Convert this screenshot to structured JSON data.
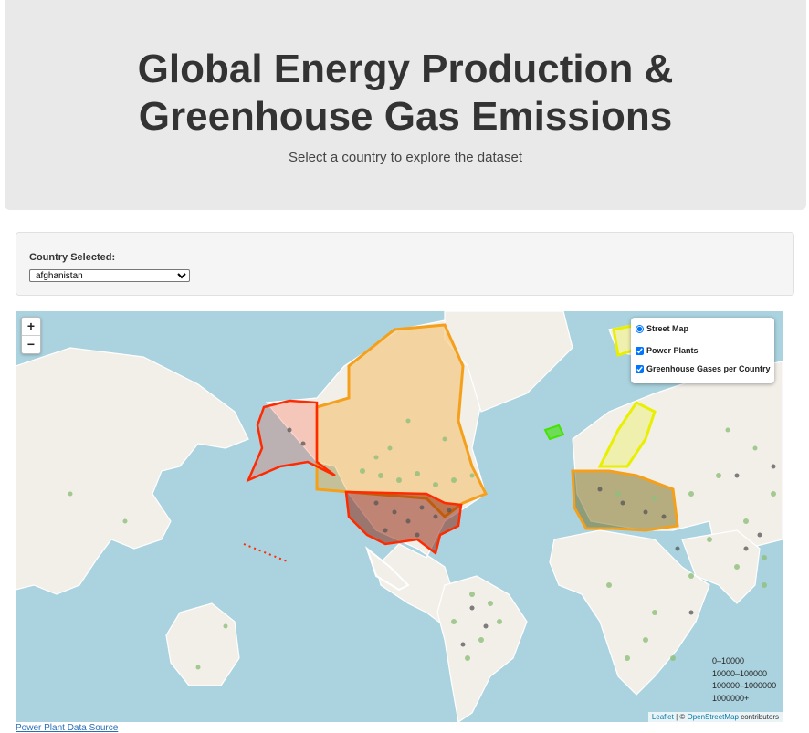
{
  "header": {
    "title_line1": "Global Energy Production &",
    "title_line2": "Greenhouse Gas Emissions",
    "subtitle": "Select a country to explore the dataset"
  },
  "selector": {
    "label": "Country Selected:",
    "selected": "afghanistan"
  },
  "map": {
    "zoom_in": "+",
    "zoom_out": "−",
    "base_layer": "Street Map",
    "overlays": [
      "Power Plants",
      "Greenhouse Gases per Country"
    ],
    "legend": [
      "0–10000",
      "10000–100000",
      "100000–1000000",
      "1000000+"
    ],
    "attribution_leaflet": "Leaflet",
    "attribution_sep": " | © ",
    "attribution_osm": "OpenStreetMap",
    "attribution_tail": " contributors",
    "colors": {
      "water": "#aad3df",
      "land": "#f2efe9",
      "red": "#ff2a00",
      "orange": "#f5a01a",
      "yellow": "#e8f000",
      "green": "#46e300",
      "plant_green": "#8fbf7a",
      "plant_dark": "#555555"
    }
  },
  "footer": {
    "source_link": "Power Plant Data Source"
  }
}
